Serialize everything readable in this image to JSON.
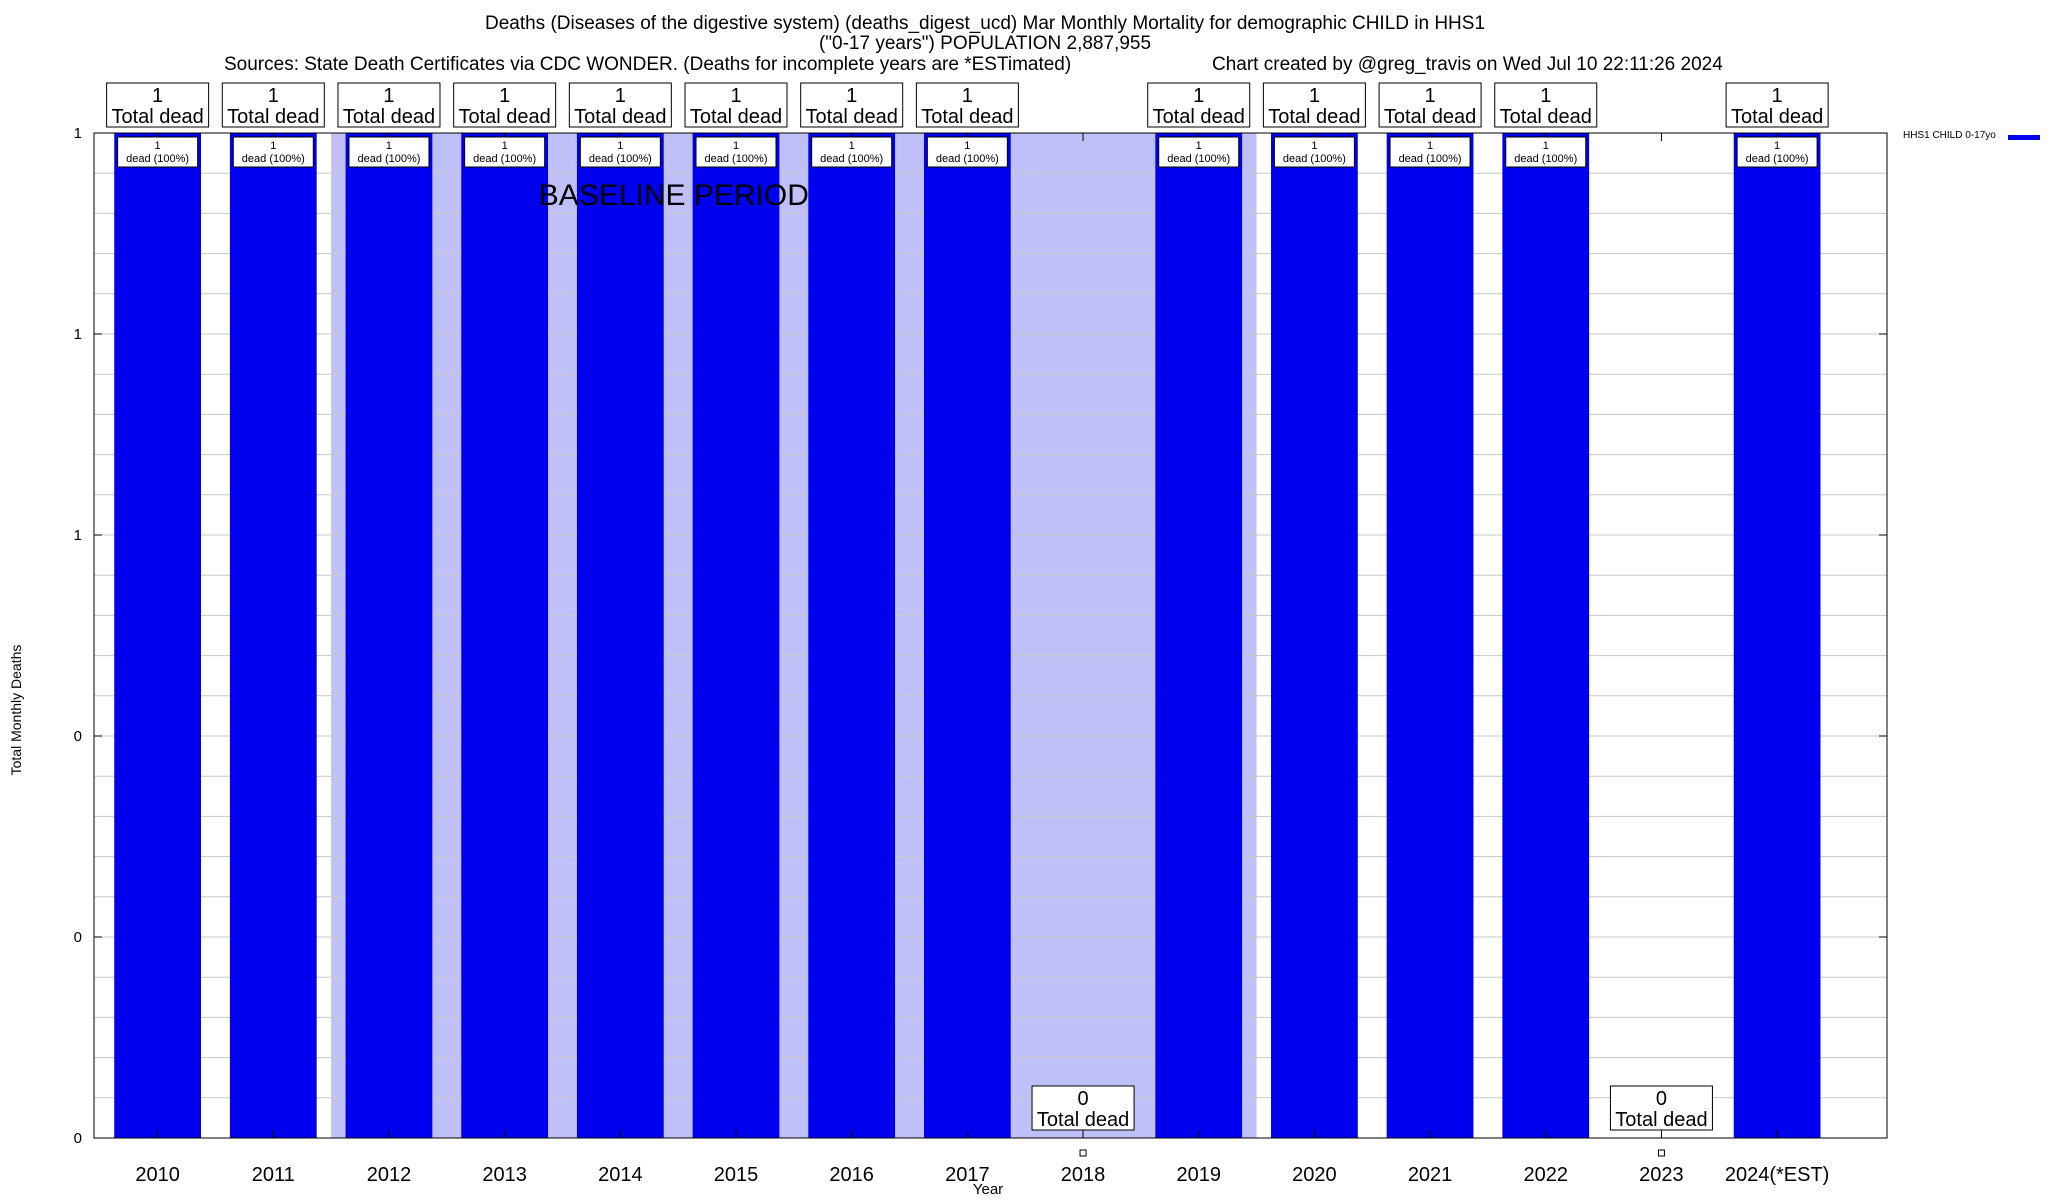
{
  "title": {
    "line1": "Deaths (Diseases of the digestive system) (deaths_digest_ucd) Mar Monthly Mortality for demographic CHILD in HHS1",
    "line2": "(\"0-17 years\") POPULATION 2,887,955",
    "sources": "Sources: State Death Certificates via CDC WONDER. (Deaths for incomplete years are *ESTimated)",
    "credit": "Chart created by @greg_travis on Wed Jul 10 22:11:26 2024"
  },
  "colors": {
    "bar": "#0000ee",
    "baseline_shade": "#c0c0f8",
    "grid": "#c8c8c8"
  },
  "chart_data": {
    "type": "bar",
    "xlabel": "Year",
    "ylabel": "Total Monthly Deaths",
    "ylim": [
      0,
      1
    ],
    "y_tick_labels": [
      "0",
      "0",
      "0",
      "1",
      "1",
      "1"
    ],
    "grid": true,
    "legend": {
      "label": "HHS1 CHILD 0-17yo",
      "placement": "top-right outside"
    },
    "baseline_annotation": {
      "text": "BASELINE PERIOD",
      "from": "2012",
      "to": "2019"
    },
    "categories": [
      "2010",
      "2011",
      "2012",
      "2013",
      "2014",
      "2015",
      "2016",
      "2017",
      "2018",
      "2019",
      "2020",
      "2021",
      "2022",
      "2023",
      "2024(*EST)"
    ],
    "series": [
      {
        "name": "HHS1 CHILD 0-17yo",
        "values": [
          1,
          1,
          1,
          1,
          1,
          1,
          1,
          1,
          0,
          1,
          1,
          1,
          1,
          0,
          1
        ]
      }
    ],
    "total_labels": [
      "1",
      "1",
      "1",
      "1",
      "1",
      "1",
      "1",
      "1",
      "0",
      "1",
      "1",
      "1",
      "1",
      "0",
      "1"
    ],
    "total_label_suffix": "Total dead",
    "inbar_labels": [
      "1",
      "1",
      "1",
      "1",
      "1",
      "1",
      "1",
      "1",
      "",
      "1",
      "1",
      "1",
      "1",
      "",
      "1"
    ],
    "inbar_label_suffix": "dead (100%)"
  }
}
